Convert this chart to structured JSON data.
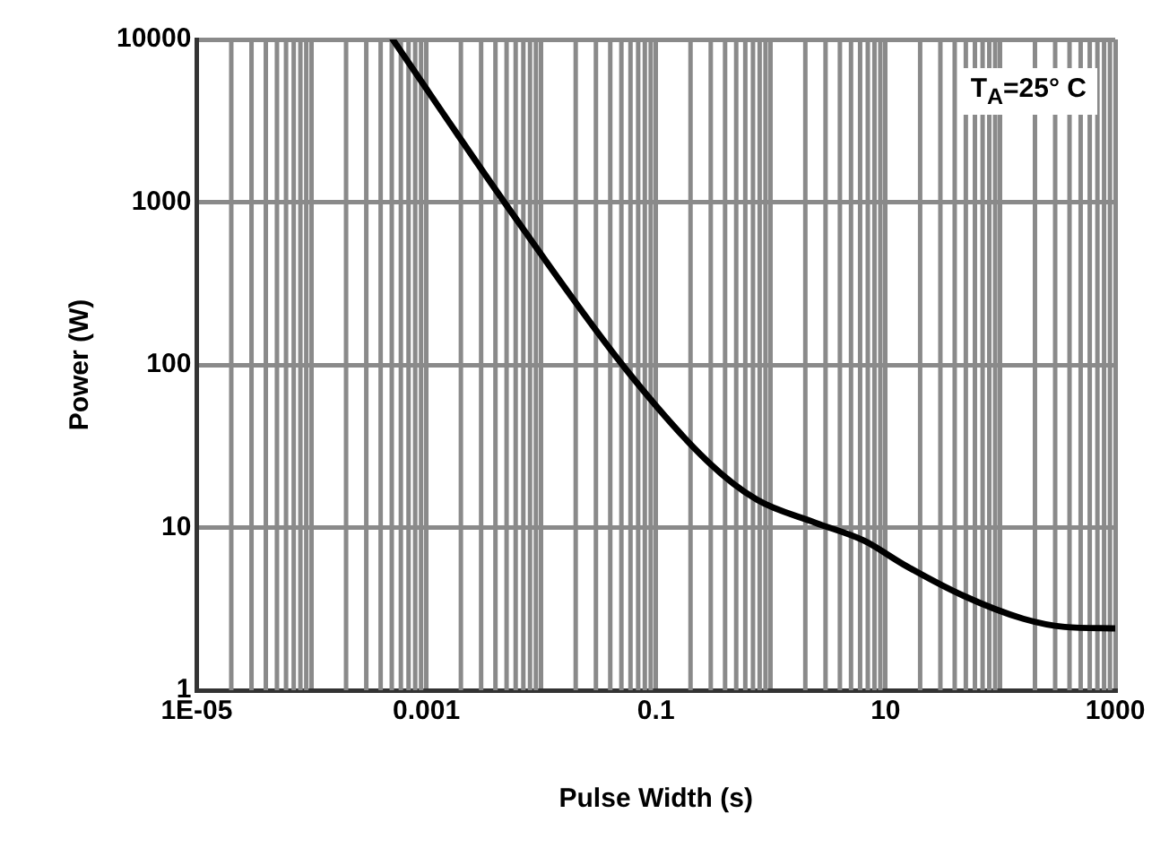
{
  "chart_data": {
    "type": "line",
    "xlabel": "Pulse Width (s)",
    "ylabel": "Power (W)",
    "log": "xy",
    "xlim": [
      1e-05,
      1000
    ],
    "xticks": [
      {
        "value": 1e-05,
        "label": "1E-05"
      },
      {
        "value": 0.0001,
        "label": null
      },
      0.001,
      {
        "value": 0.01,
        "label": null
      },
      0.1,
      {
        "value": 1,
        "label": null
      },
      10,
      {
        "value": 100,
        "label": null
      },
      1000
    ],
    "ylim": [
      1,
      10000
    ],
    "yticks": [
      1,
      10,
      100,
      1000,
      10000
    ],
    "grid": true,
    "legend": false,
    "marker": "none",
    "line_style": "solid",
    "annotations": [
      "T$_{A}$=25° C"
    ],
    "series": [
      {
        "color": "#000000",
        "x": [
          0.00051,
          0.005,
          0.054,
          0.29,
          0.76,
          2.45,
          6.5,
          14.5,
          48,
          158,
          363,
          1000
        ],
        "values": [
          10000,
          955,
          95,
          25,
          14.8,
          10.7,
          8.3,
          5.9,
          3.8,
          2.75,
          2.45,
          2.4
        ]
      }
    ]
  }
}
